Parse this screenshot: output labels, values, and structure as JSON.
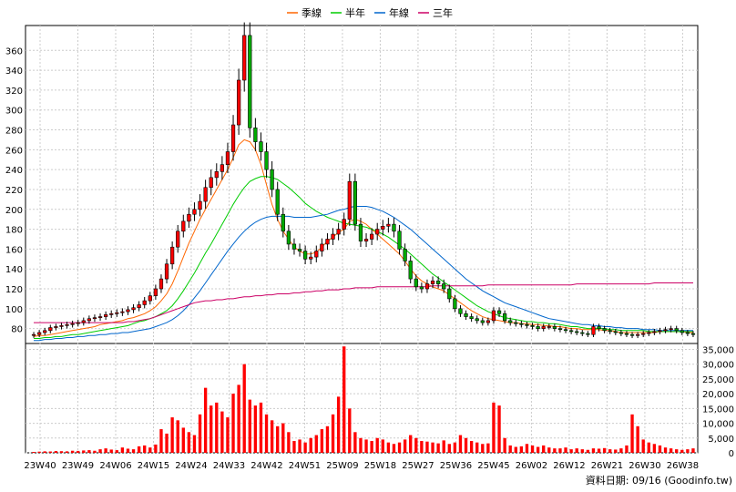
{
  "chart_data": {
    "type": "candlestick+line+bar",
    "legend": [
      {
        "name": "季線",
        "color": "#ff6600"
      },
      {
        "name": "半年",
        "color": "#00cc00"
      },
      {
        "name": "年線",
        "color": "#0066cc"
      },
      {
        "name": "三年",
        "color": "#cc0066"
      }
    ],
    "legend_position": "top-center",
    "price_axis": {
      "ticks": [
        80,
        100,
        120,
        140,
        160,
        180,
        200,
        220,
        240,
        260,
        280,
        300,
        320,
        340,
        360
      ],
      "range": [
        65,
        385
      ],
      "side": "left"
    },
    "volume_axis": {
      "ticks": [
        "35,000",
        "30,000",
        "25,000",
        "20,000",
        "15,000",
        "10,000",
        "5,000",
        "0"
      ],
      "values": [
        35000,
        30000,
        25000,
        20000,
        15000,
        10000,
        5000,
        0
      ],
      "range": [
        0,
        37000
      ],
      "side": "right"
    },
    "x_axis": {
      "ticks": [
        "23W40",
        "23W49",
        "24W06",
        "24W15",
        "24W24",
        "24W33",
        "24W42",
        "24W51",
        "25W09",
        "25W18",
        "25W27",
        "25W36",
        "25W45",
        "26W02",
        "26W12",
        "26W21",
        "26W30",
        "26W38"
      ]
    },
    "grid": true,
    "up_color": "#ff0000",
    "down_color": "#00aa00",
    "volume_color": "#ff0000",
    "footer": "資料日期: 09/16 (Goodinfo.tw)",
    "close": [
      74,
      76,
      78,
      81,
      82,
      83,
      84,
      85,
      86,
      88,
      90,
      91,
      92,
      94,
      95,
      96,
      97,
      99,
      101,
      104,
      108,
      113,
      120,
      130,
      145,
      162,
      178,
      188,
      195,
      200,
      208,
      222,
      232,
      238,
      245,
      258,
      285,
      330,
      375,
      282,
      268,
      258,
      240,
      220,
      195,
      178,
      165,
      160,
      158,
      150,
      152,
      158,
      165,
      170,
      175,
      180,
      190,
      228,
      185,
      168,
      170,
      175,
      180,
      183,
      185,
      178,
      160,
      148,
      130,
      122,
      120,
      125,
      128,
      125,
      120,
      110,
      100,
      95,
      92,
      90,
      88,
      86,
      88,
      98,
      95,
      88,
      86,
      85,
      84,
      83,
      82,
      80,
      82,
      82,
      80,
      79,
      78,
      77,
      76,
      75,
      74,
      82,
      80,
      78,
      77,
      76,
      75,
      74,
      73,
      74,
      75,
      76,
      77,
      78,
      79,
      80,
      78,
      76,
      75,
      74
    ],
    "ma_quarter": [
      72,
      73,
      73,
      74,
      75,
      76,
      77,
      78,
      79,
      80,
      81,
      82,
      84,
      85,
      86,
      87,
      88,
      90,
      91,
      93,
      95,
      98,
      102,
      108,
      115,
      125,
      138,
      152,
      166,
      178,
      190,
      200,
      210,
      220,
      230,
      240,
      252,
      265,
      270,
      268,
      260,
      245,
      225,
      205,
      190,
      178,
      170,
      162,
      158,
      155,
      155,
      157,
      162,
      168,
      172,
      177,
      180,
      188,
      190,
      188,
      185,
      180,
      175,
      170,
      165,
      160,
      155,
      148,
      140,
      133,
      128,
      125,
      122,
      120,
      118,
      114,
      110,
      106,
      102,
      98,
      95,
      92,
      90,
      89,
      88,
      87,
      86,
      86,
      85,
      85,
      84,
      84,
      83,
      83,
      82,
      82,
      81,
      80,
      80,
      79,
      79,
      79,
      79,
      78,
      78,
      77,
      76,
      76,
      76,
      76,
      76,
      76,
      76,
      77,
      77,
      77,
      77,
      77,
      76,
      76
    ],
    "ma_half": [
      70,
      70,
      71,
      71,
      72,
      72,
      73,
      74,
      74,
      75,
      76,
      77,
      78,
      79,
      80,
      81,
      82,
      83,
      85,
      87,
      88,
      90,
      92,
      95,
      98,
      103,
      110,
      118,
      127,
      136,
      146,
      156,
      165,
      175,
      185,
      195,
      205,
      214,
      222,
      228,
      231,
      233,
      233,
      232,
      230,
      226,
      222,
      217,
      212,
      206,
      202,
      198,
      195,
      192,
      190,
      188,
      186,
      185,
      184,
      183,
      182,
      180,
      178,
      175,
      172,
      168,
      164,
      160,
      155,
      150,
      145,
      140,
      135,
      131,
      127,
      123,
      119,
      115,
      111,
      107,
      103,
      100,
      97,
      95,
      93,
      91,
      90,
      89,
      88,
      87,
      87,
      86,
      86,
      85,
      85,
      84,
      83,
      82,
      82,
      81,
      80,
      80,
      80,
      80,
      79,
      79,
      78,
      78,
      78,
      78,
      78,
      77,
      77,
      77,
      77,
      77,
      77,
      77,
      77,
      77
    ],
    "ma_year": [
      68,
      68,
      69,
      69,
      70,
      70,
      71,
      71,
      72,
      72,
      73,
      73,
      74,
      74,
      75,
      75,
      76,
      76,
      77,
      78,
      79,
      80,
      82,
      84,
      86,
      89,
      93,
      98,
      104,
      111,
      118,
      126,
      134,
      142,
      150,
      158,
      165,
      172,
      178,
      183,
      187,
      190,
      192,
      193,
      193,
      193,
      193,
      192,
      192,
      192,
      192,
      193,
      194,
      195,
      197,
      199,
      200,
      202,
      203,
      203,
      203,
      202,
      200,
      198,
      195,
      192,
      188,
      184,
      180,
      175,
      170,
      165,
      160,
      155,
      150,
      145,
      140,
      135,
      130,
      126,
      122,
      118,
      115,
      112,
      109,
      106,
      104,
      102,
      100,
      98,
      96,
      94,
      92,
      90,
      89,
      88,
      87,
      86,
      85,
      84,
      84,
      83,
      83,
      82,
      82,
      81,
      81,
      80,
      80,
      80,
      79,
      79,
      79,
      78,
      78,
      78,
      78,
      78,
      78,
      78
    ],
    "ma_three": [
      86,
      86,
      86,
      86,
      86,
      86,
      86,
      86,
      86,
      86,
      86,
      86,
      86,
      86,
      86,
      86,
      86,
      87,
      87,
      88,
      89,
      90,
      92,
      94,
      96,
      98,
      100,
      102,
      104,
      106,
      107,
      108,
      108,
      109,
      109,
      110,
      110,
      111,
      112,
      112,
      113,
      113,
      114,
      114,
      115,
      115,
      115,
      116,
      116,
      117,
      117,
      118,
      118,
      119,
      119,
      119,
      120,
      120,
      121,
      121,
      121,
      121,
      122,
      122,
      122,
      122,
      122,
      122,
      122,
      122,
      122,
      122,
      123,
      123,
      123,
      123,
      123,
      123,
      123,
      123,
      123,
      123,
      124,
      124,
      124,
      124,
      124,
      124,
      124,
      124,
      124,
      124,
      124,
      124,
      124,
      124,
      124,
      124,
      125,
      125,
      125,
      125,
      125,
      125,
      125,
      125,
      125,
      125,
      125,
      125,
      125,
      125,
      126,
      126,
      126,
      126,
      126,
      126,
      126,
      126
    ],
    "volume": [
      300,
      400,
      500,
      450,
      600,
      550,
      500,
      700,
      650,
      800,
      900,
      700,
      1200,
      1500,
      1100,
      900,
      1800,
      1400,
      1200,
      2200,
      2500,
      1800,
      2800,
      8000,
      6500,
      12000,
      11000,
      8500,
      7000,
      6000,
      13000,
      22000,
      16000,
      17000,
      14000,
      12000,
      20000,
      23000,
      30000,
      18000,
      16000,
      17000,
      13000,
      11000,
      9000,
      10000,
      7000,
      4000,
      4500,
      3500,
      5000,
      6000,
      8000,
      9000,
      13000,
      19000,
      36000,
      15000,
      7000,
      5000,
      4500,
      4000,
      5000,
      4500,
      3500,
      3000,
      3500,
      4500,
      6000,
      5000,
      4000,
      3800,
      3500,
      3200,
      4200,
      3000,
      3500,
      6000,
      5000,
      4000,
      3500,
      3000,
      3200,
      17000,
      16000,
      5000,
      2500,
      2000,
      2200,
      3000,
      2500,
      2000,
      2500,
      1800,
      1500,
      1500,
      1800,
      1200,
      1500,
      1200,
      1000,
      1500,
      1400,
      1600,
      1200,
      1100,
      1500,
      2500,
      13000,
      9000,
      4500,
      3500,
      3000,
      2500,
      1800,
      1500,
      1200,
      1000,
      1200,
      1500
    ]
  }
}
